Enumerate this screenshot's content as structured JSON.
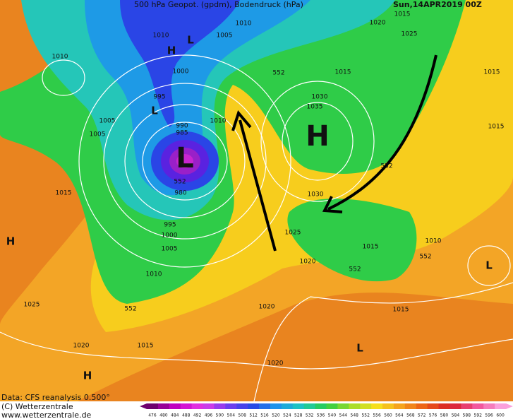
{
  "header": {
    "title": "500 hPa Geopot. (gpdm), Bodendruck (hPa)",
    "date": "Sun,14APR2019 00Z"
  },
  "footer": {
    "source": "Data: CFS reanalysis 0.500°",
    "copyright": "(C) Wetterzentrale",
    "url": "www.wetterzentrale.de"
  },
  "map": {
    "labels": [
      "1015",
      "1020",
      "1010",
      "1025",
      "1010",
      "1005",
      "1010",
      "1015",
      "1015",
      "1000",
      "552",
      "1030",
      "995",
      "1035",
      "1010",
      "1005",
      "990",
      "985",
      "1005",
      "1015",
      "552",
      "552",
      "980",
      "1030",
      "1015",
      "995",
      "1025",
      "1000",
      "1005",
      "1015",
      "1010",
      "1020",
      "552",
      "552",
      "1010",
      "1025",
      "1020",
      "1015",
      "552",
      "1020",
      "1015",
      "1020"
    ],
    "centers": [
      "H",
      "L",
      "L",
      "L",
      "H",
      "H",
      "L",
      "L",
      "H"
    ]
  },
  "colorbar": {
    "labels": [
      476,
      480,
      484,
      488,
      492,
      496,
      500,
      504,
      508,
      512,
      516,
      520,
      524,
      528,
      532,
      536,
      540,
      544,
      548,
      552,
      556,
      560,
      564,
      568,
      572,
      576,
      580,
      584,
      588,
      592,
      596,
      600
    ]
  }
}
